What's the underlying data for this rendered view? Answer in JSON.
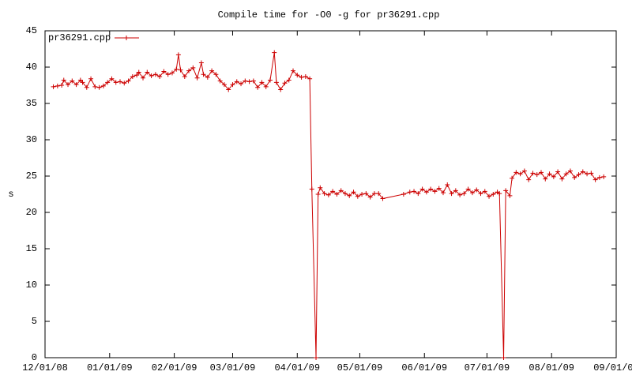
{
  "chart_data": {
    "type": "line",
    "title": "Compile time for -O0 -g for pr36291.cpp",
    "y_label": "s",
    "xlim": [
      "2008-12-01",
      "2009-09-01"
    ],
    "xticks": [
      {
        "value": "2008-12-01",
        "label": "12/01/08"
      },
      {
        "value": "2009-01-01",
        "label": "01/01/09"
      },
      {
        "value": "2009-02-01",
        "label": "02/01/09"
      },
      {
        "value": "2009-03-01",
        "label": "03/01/09"
      },
      {
        "value": "2009-04-01",
        "label": "04/01/09"
      },
      {
        "value": "2009-05-01",
        "label": "05/01/09"
      },
      {
        "value": "2009-06-01",
        "label": "06/01/09"
      },
      {
        "value": "2009-07-01",
        "label": "07/01/09"
      },
      {
        "value": "2009-08-01",
        "label": "08/01/09"
      },
      {
        "value": "2009-09-01",
        "label": "09/01/09"
      }
    ],
    "ylim": [
      0,
      45
    ],
    "yticks": [
      0,
      5,
      10,
      15,
      20,
      25,
      30,
      35,
      40,
      45
    ],
    "grid": false,
    "legend": "top-left",
    "x": [
      "2008-12-05",
      "2008-12-07",
      "2008-12-09",
      "2008-12-10",
      "2008-12-12",
      "2008-12-14",
      "2008-12-16",
      "2008-12-18",
      "2008-12-19",
      "2008-12-21",
      "2008-12-23",
      "2008-12-25",
      "2008-12-27",
      "2008-12-29",
      "2008-12-31",
      "2009-01-02",
      "2009-01-04",
      "2009-01-06",
      "2009-01-08",
      "2009-01-10",
      "2009-01-12",
      "2009-01-14",
      "2009-01-15",
      "2009-01-17",
      "2009-01-19",
      "2009-01-21",
      "2009-01-23",
      "2009-01-25",
      "2009-01-27",
      "2009-01-29",
      "2009-01-31",
      "2009-02-02",
      "2009-02-03",
      "2009-02-04",
      "2009-02-06",
      "2009-02-08",
      "2009-02-10",
      "2009-02-12",
      "2009-02-14",
      "2009-02-15",
      "2009-02-17",
      "2009-02-19",
      "2009-02-21",
      "2009-02-23",
      "2009-02-25",
      "2009-02-27",
      "2009-03-01",
      "2009-03-03",
      "2009-03-05",
      "2009-03-07",
      "2009-03-09",
      "2009-03-11",
      "2009-03-13",
      "2009-03-15",
      "2009-03-17",
      "2009-03-19",
      "2009-03-21",
      "2009-03-22",
      "2009-03-24",
      "2009-03-26",
      "2009-03-28",
      "2009-03-30",
      "2009-04-01",
      "2009-04-03",
      "2009-04-05",
      "2009-04-07",
      "2009-04-08",
      "2009-04-10",
      "2009-04-11",
      "2009-04-12",
      "2009-04-14",
      "2009-04-16",
      "2009-04-18",
      "2009-04-20",
      "2009-04-22",
      "2009-04-24",
      "2009-04-26",
      "2009-04-28",
      "2009-04-30",
      "2009-05-02",
      "2009-05-04",
      "2009-05-06",
      "2009-05-08",
      "2009-05-10",
      "2009-05-12",
      "2009-05-22",
      "2009-05-25",
      "2009-05-27",
      "2009-05-29",
      "2009-05-31",
      "2009-06-02",
      "2009-06-04",
      "2009-06-06",
      "2009-06-08",
      "2009-06-10",
      "2009-06-12",
      "2009-06-14",
      "2009-06-16",
      "2009-06-18",
      "2009-06-20",
      "2009-06-22",
      "2009-06-24",
      "2009-06-26",
      "2009-06-28",
      "2009-06-30",
      "2009-07-02",
      "2009-07-04",
      "2009-07-06",
      "2009-07-07",
      "2009-07-09",
      "2009-07-10",
      "2009-07-12",
      "2009-07-13",
      "2009-07-15",
      "2009-07-17",
      "2009-07-19",
      "2009-07-21",
      "2009-07-23",
      "2009-07-25",
      "2009-07-27",
      "2009-07-29",
      "2009-07-31",
      "2009-08-02",
      "2009-08-04",
      "2009-08-06",
      "2009-08-08",
      "2009-08-10",
      "2009-08-12",
      "2009-08-14",
      "2009-08-16",
      "2009-08-18",
      "2009-08-20",
      "2009-08-22",
      "2009-08-24",
      "2009-08-26"
    ],
    "series": [
      {
        "name": "pr36291.cpp",
        "color": "#cc0000",
        "values": [
          37.3,
          37.4,
          37.5,
          38.2,
          37.6,
          38.1,
          37.6,
          38.2,
          37.9,
          37.2,
          38.4,
          37.3,
          37.2,
          37.4,
          37.9,
          38.4,
          37.9,
          38.0,
          37.8,
          38.1,
          38.7,
          38.9,
          39.3,
          38.5,
          39.3,
          38.8,
          39.0,
          38.7,
          39.4,
          39.0,
          39.2,
          39.7,
          41.7,
          39.6,
          38.7,
          39.5,
          39.9,
          38.5,
          40.6,
          39.0,
          38.6,
          39.5,
          39.0,
          38.1,
          37.6,
          36.9,
          37.6,
          38.0,
          37.7,
          38.1,
          38.0,
          38.1,
          37.2,
          37.9,
          37.3,
          38.2,
          42.0,
          37.9,
          36.9,
          37.8,
          38.2,
          39.5,
          38.9,
          38.6,
          38.7,
          38.4,
          23.2,
          0.0,
          22.5,
          23.4,
          22.6,
          22.4,
          22.9,
          22.5,
          23.0,
          22.6,
          22.3,
          22.8,
          22.2,
          22.5,
          22.6,
          22.1,
          22.6,
          22.6,
          21.9,
          22.5,
          22.8,
          22.9,
          22.6,
          23.2,
          22.8,
          23.2,
          22.9,
          23.3,
          22.7,
          23.8,
          22.6,
          23.0,
          22.4,
          22.6,
          23.2,
          22.7,
          23.1,
          22.6,
          22.9,
          22.2,
          22.5,
          22.8,
          22.6,
          0.0,
          23.0,
          22.3,
          24.7,
          25.5,
          25.3,
          25.7,
          24.5,
          25.4,
          25.2,
          25.5,
          24.6,
          25.3,
          24.9,
          25.6,
          24.6,
          25.3,
          25.7,
          24.8,
          25.2,
          25.6,
          25.3,
          25.4,
          24.5,
          24.8,
          24.9
        ]
      }
    ]
  }
}
